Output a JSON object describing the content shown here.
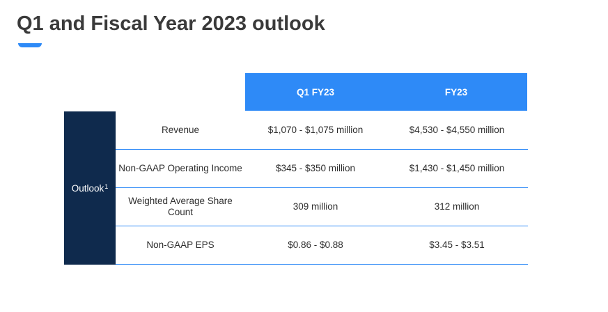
{
  "page": {
    "title": "Q1 and Fiscal Year 2023 outlook"
  },
  "colors": {
    "accent": "#2e8af7",
    "sidebar": "#0f2a4d"
  },
  "table": {
    "columns": [
      "Q1 FY23",
      "FY23"
    ],
    "side_label": "Outlook",
    "side_label_sup": "1",
    "rows": [
      {
        "label": "Revenue",
        "q1": "$1,070 - $1,075 million",
        "fy": "$4,530 - $4,550 million"
      },
      {
        "label": "Non-GAAP Operating Income",
        "q1": "$345 - $350 million",
        "fy": "$1,430 - $1,450 million"
      },
      {
        "label": "Weighted Average Share Count",
        "q1": "309 million",
        "fy": "312 million"
      },
      {
        "label": "Non-GAAP EPS",
        "q1": "$0.86 - $0.88",
        "fy": "$3.45 - $3.51"
      }
    ]
  }
}
